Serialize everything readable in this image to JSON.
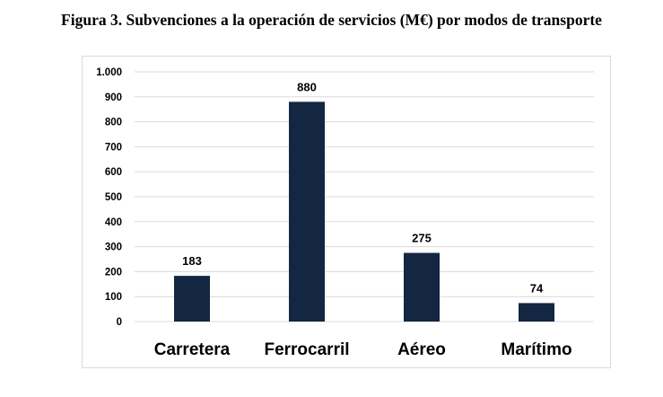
{
  "figure": {
    "title": "Figura 3. Subvenciones a la operación de servicios (M€) por modos de transporte"
  },
  "colors": {
    "bar": "#132642",
    "grid": "#d9d9d9"
  },
  "chart_data": {
    "type": "bar",
    "title": "Figura 3. Subvenciones a la operación de servicios (M€) por modos de transporte",
    "xlabel": "",
    "ylabel": "",
    "categories": [
      "Carretera",
      "Ferrocarril",
      "Aéreo",
      "Marítimo"
    ],
    "values": [
      183,
      880,
      275,
      74
    ],
    "value_labels": [
      "183",
      "880",
      "275",
      "74"
    ],
    "ylim": [
      0,
      1000
    ],
    "yticks": [
      0,
      100,
      200,
      300,
      400,
      500,
      600,
      700,
      800,
      900,
      1000
    ],
    "ytick_labels": [
      "0",
      "100",
      "200",
      "300",
      "400",
      "500",
      "600",
      "700",
      "800",
      "900",
      "1.000"
    ],
    "grid": true,
    "legend": "none"
  }
}
